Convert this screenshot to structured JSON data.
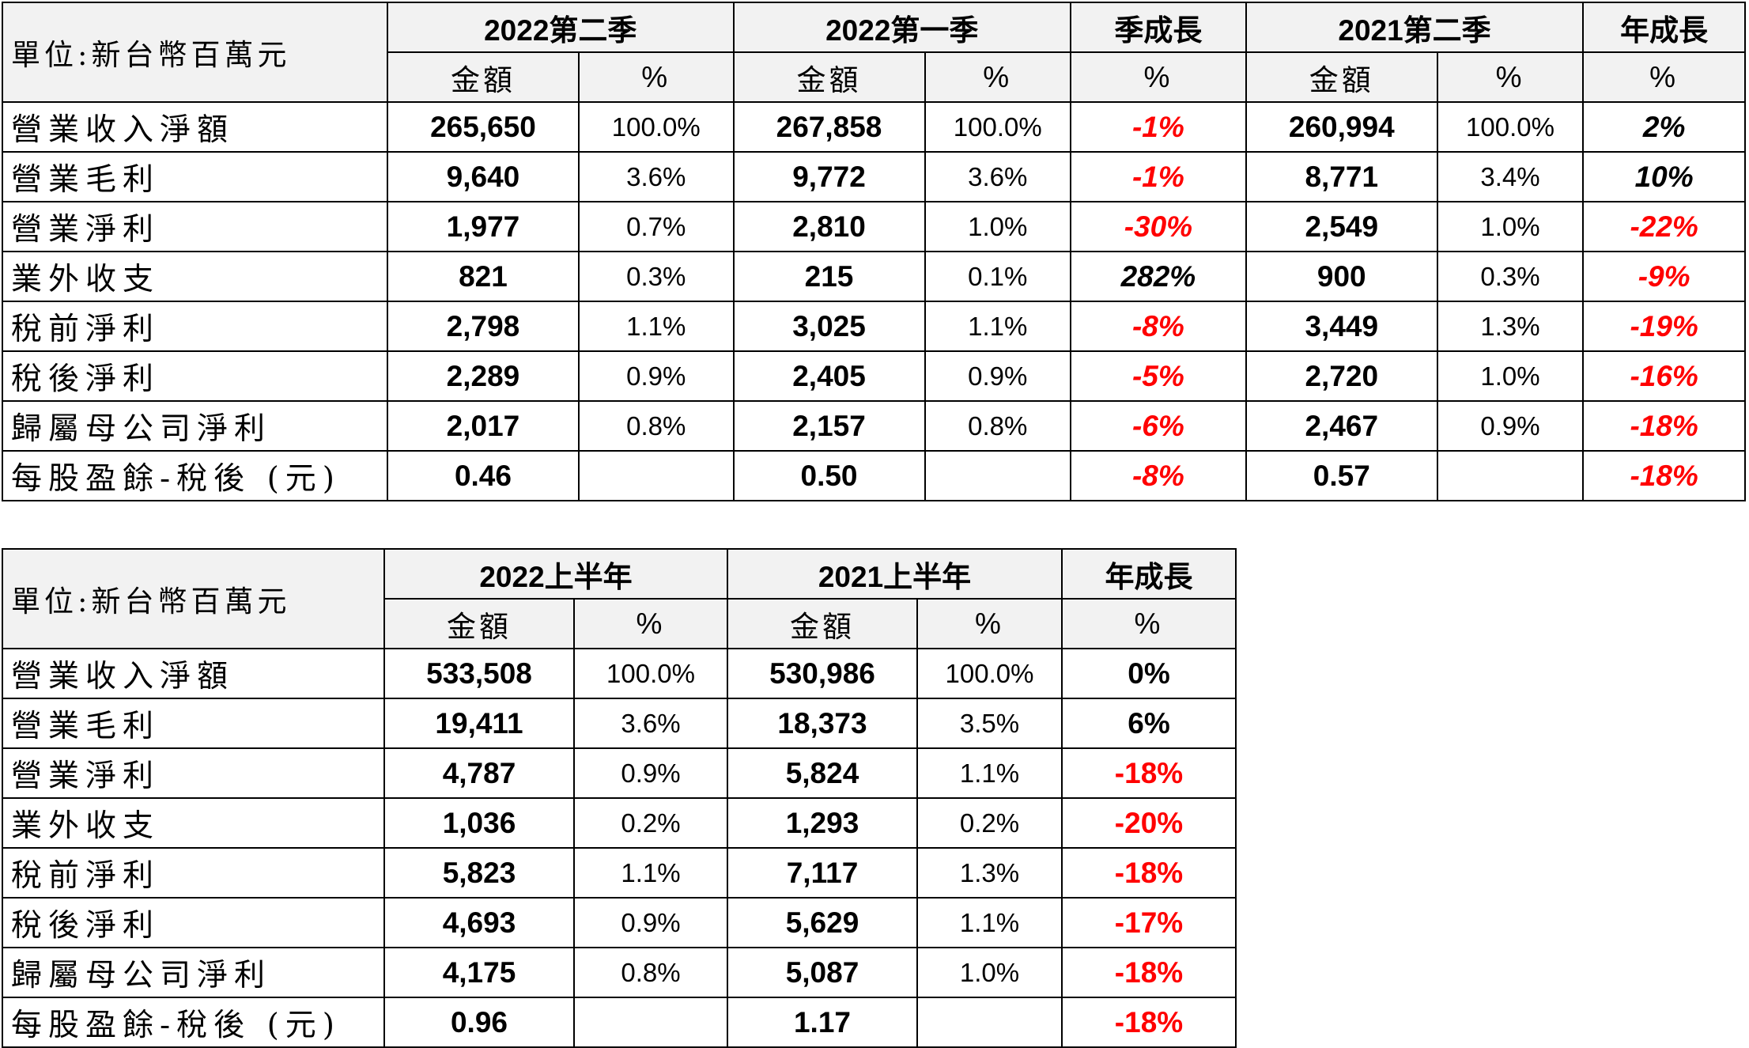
{
  "quarterly": {
    "unit_label": "單位:新台幣百萬元",
    "headers": [
      "2022第二季",
      "2022第一季",
      "季成長",
      "2021第二季",
      "年成長"
    ],
    "subheaders": [
      "金額",
      "%",
      "金額",
      "%",
      "%",
      "金額",
      "%",
      "%"
    ],
    "rows": [
      {
        "label": "營業收入淨額",
        "cells": [
          "265,650",
          "100.0%",
          "267,858",
          "100.0%",
          "-1%",
          "260,994",
          "100.0%",
          "2%"
        ]
      },
      {
        "label": "營業毛利",
        "cells": [
          "9,640",
          "3.6%",
          "9,772",
          "3.6%",
          "-1%",
          "8,771",
          "3.4%",
          "10%"
        ]
      },
      {
        "label": "營業淨利",
        "cells": [
          "1,977",
          "0.7%",
          "2,810",
          "1.0%",
          "-30%",
          "2,549",
          "1.0%",
          "-22%"
        ]
      },
      {
        "label": "業外收支",
        "cells": [
          "821",
          "0.3%",
          "215",
          "0.1%",
          "282%",
          "900",
          "0.3%",
          "-9%"
        ]
      },
      {
        "label": "稅前淨利",
        "cells": [
          "2,798",
          "1.1%",
          "3,025",
          "1.1%",
          "-8%",
          "3,449",
          "1.3%",
          "-19%"
        ]
      },
      {
        "label": "稅後淨利",
        "cells": [
          "2,289",
          "0.9%",
          "2,405",
          "0.9%",
          "-5%",
          "2,720",
          "1.0%",
          "-16%"
        ]
      },
      {
        "label": "歸屬母公司淨利",
        "cells": [
          "2,017",
          "0.8%",
          "2,157",
          "0.8%",
          "-6%",
          "2,467",
          "0.9%",
          "-18%"
        ]
      },
      {
        "label": "每股盈餘-稅後 (元)",
        "cells": [
          "0.46",
          "",
          "0.50",
          "",
          "-8%",
          "0.57",
          "",
          "-18%"
        ]
      }
    ]
  },
  "half_year": {
    "unit_label": "單位:新台幣百萬元",
    "headers": [
      "2022上半年",
      "2021上半年",
      "年成長"
    ],
    "subheaders": [
      "金額",
      "%",
      "金額",
      "%",
      "%"
    ],
    "rows": [
      {
        "label": "營業收入淨額",
        "cells": [
          "533,508",
          "100.0%",
          "530,986",
          "100.0%",
          "0%"
        ]
      },
      {
        "label": "營業毛利",
        "cells": [
          "19,411",
          "3.6%",
          "18,373",
          "3.5%",
          "6%"
        ]
      },
      {
        "label": "營業淨利",
        "cells": [
          "4,787",
          "0.9%",
          "5,824",
          "1.1%",
          "-18%"
        ]
      },
      {
        "label": "業外收支",
        "cells": [
          "1,036",
          "0.2%",
          "1,293",
          "0.2%",
          "-20%"
        ]
      },
      {
        "label": "稅前淨利",
        "cells": [
          "5,823",
          "1.1%",
          "7,117",
          "1.3%",
          "-18%"
        ]
      },
      {
        "label": "稅後淨利",
        "cells": [
          "4,693",
          "0.9%",
          "5,629",
          "1.1%",
          "-17%"
        ]
      },
      {
        "label": "歸屬母公司淨利",
        "cells": [
          "4,175",
          "0.8%",
          "5,087",
          "1.0%",
          "-18%"
        ]
      },
      {
        "label": "每股盈餘-稅後 (元)",
        "cells": [
          "0.96",
          "",
          "1.17",
          "",
          "-18%"
        ]
      }
    ]
  },
  "colors": {
    "negative": "#ff0000",
    "header_bg": "#f2f2f2",
    "border": "#000000"
  }
}
